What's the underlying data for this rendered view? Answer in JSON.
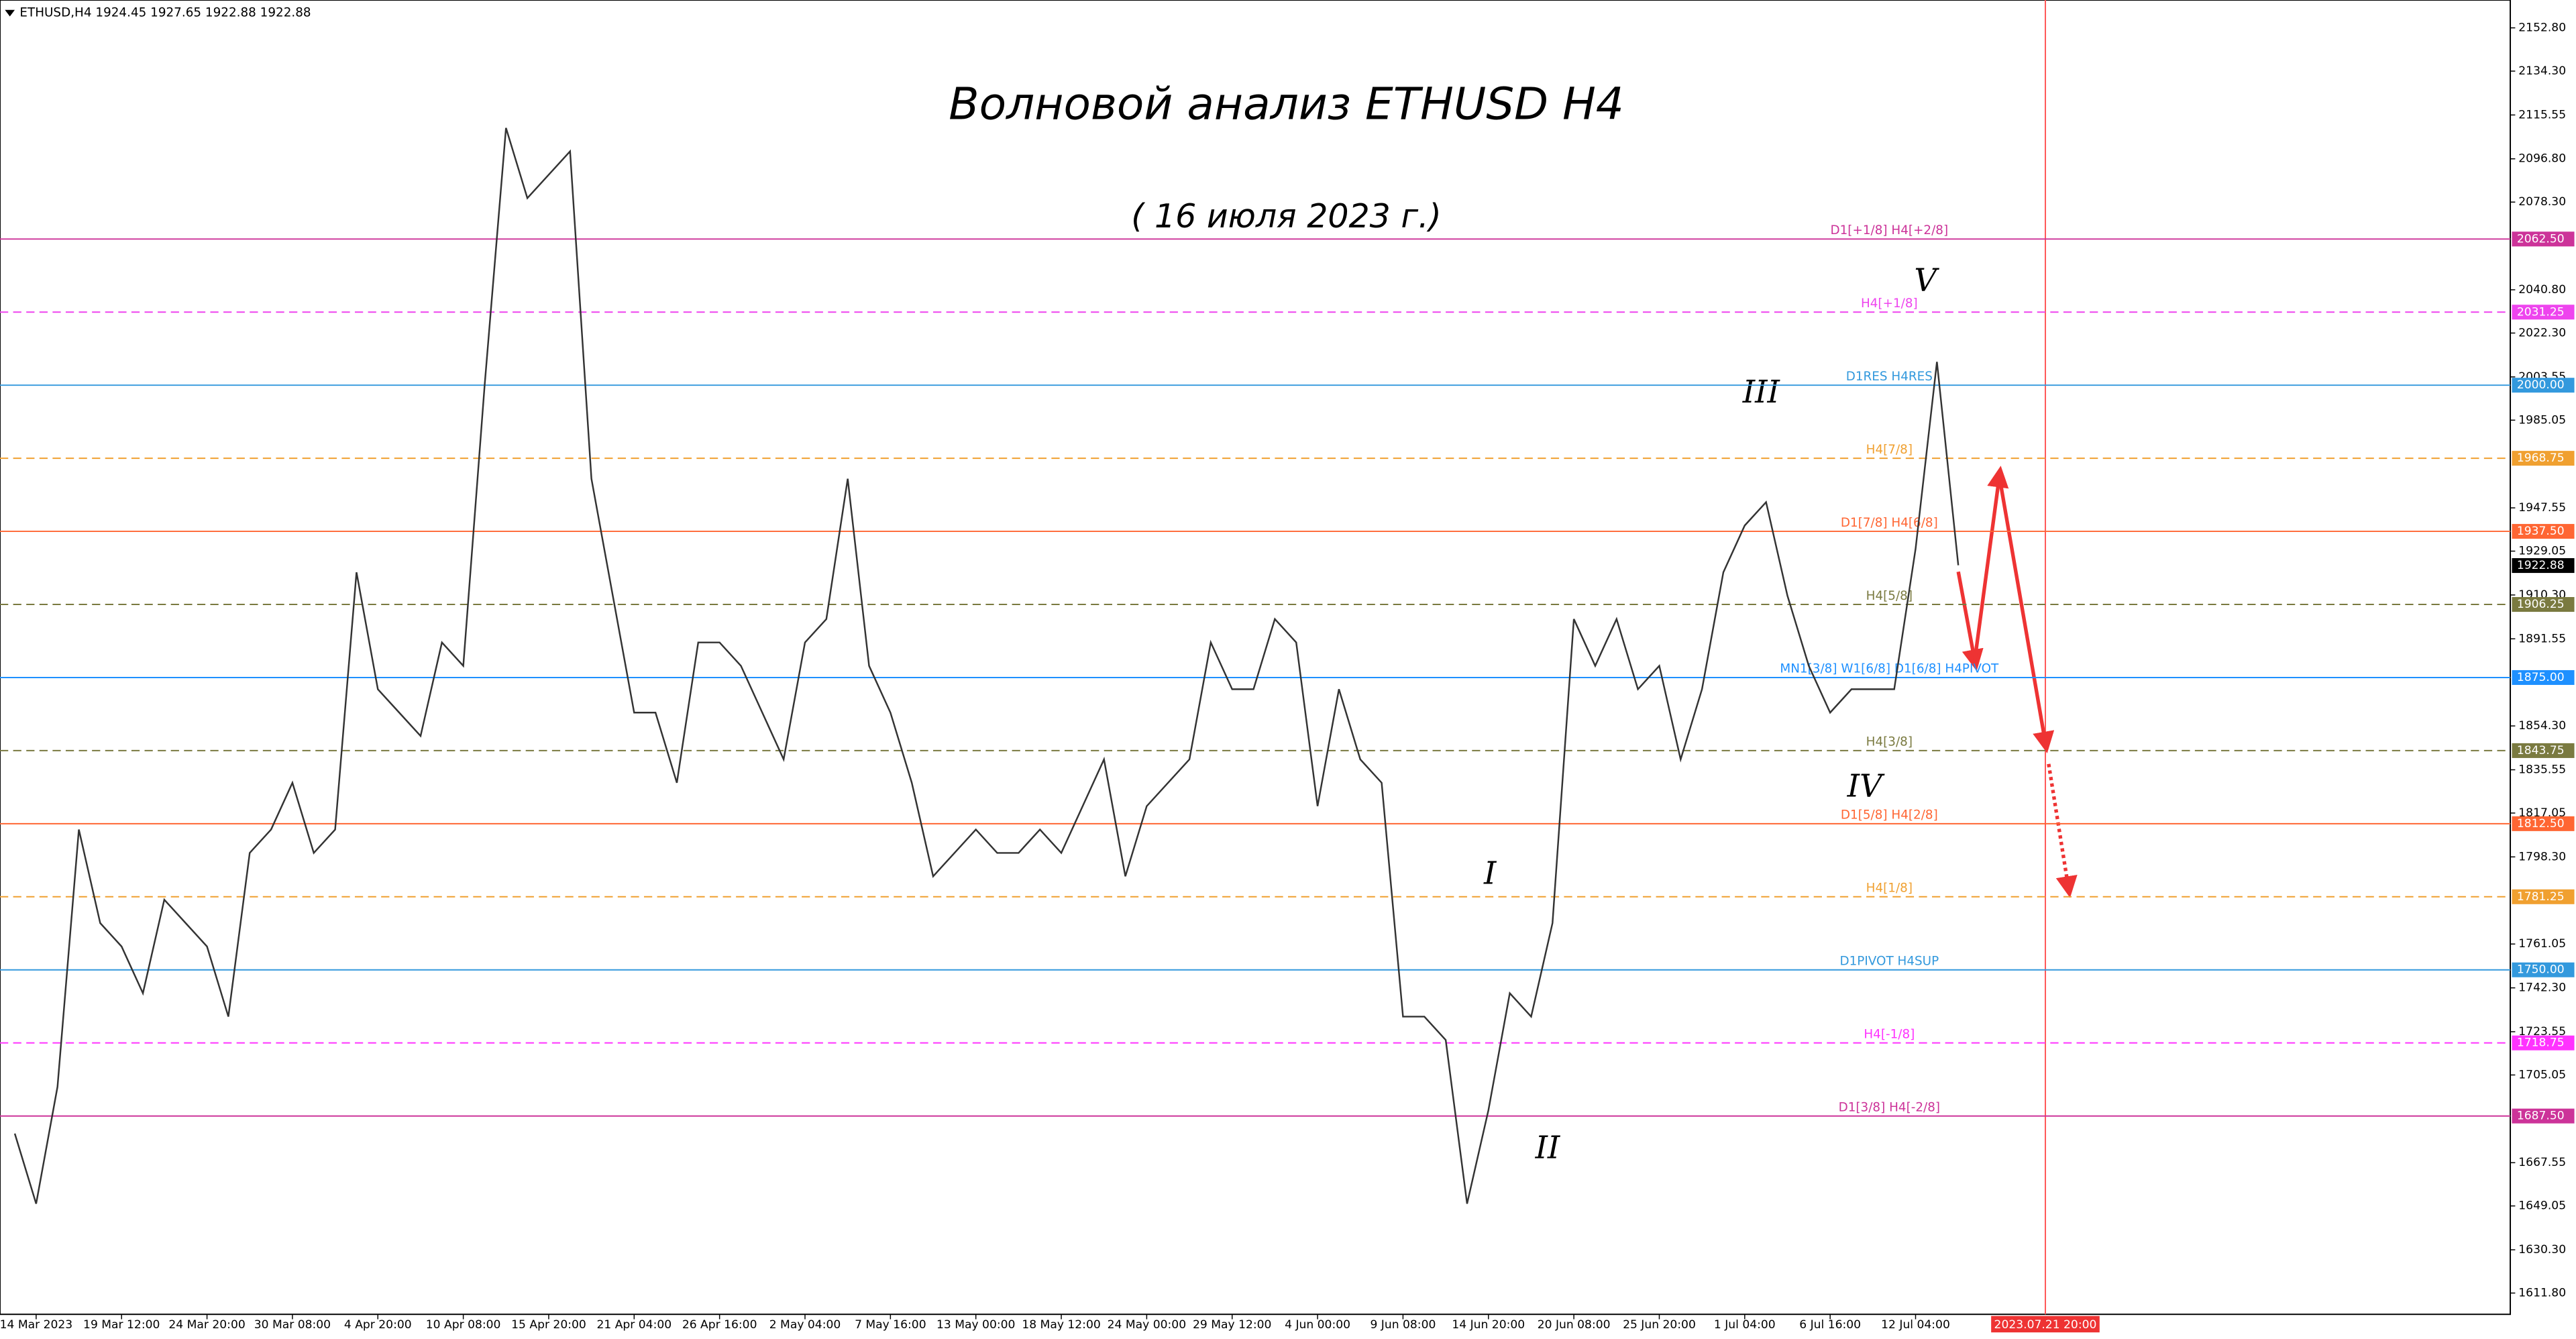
{
  "chart_data": {
    "type": "line",
    "header": "ETHUSD,H4  1924.45 1927.65 1922.88 1922.88",
    "title": "Волновой анализ ETHUSD H4",
    "subtitle": "( 16 июля 2023 г.)",
    "color": "#333333",
    "categories": [
      null,
      "14 Mar 2023",
      null,
      null,
      null,
      "19 Mar 12:00",
      null,
      null,
      null,
      "24 Mar 20:00",
      null,
      null,
      null,
      "30 Mar 08:00",
      null,
      null,
      null,
      "4 Apr 20:00",
      null,
      null,
      null,
      "10 Apr 08:00",
      null,
      null,
      null,
      "15 Apr 20:00",
      null,
      null,
      null,
      "21 Apr 04:00",
      null,
      null,
      null,
      "26 Apr 16:00",
      null,
      null,
      null,
      "2 May 04:00",
      null,
      null,
      null,
      "7 May 16:00",
      null,
      null,
      null,
      "13 May 00:00",
      null,
      null,
      null,
      "18 May 12:00",
      null,
      null,
      null,
      "24 May 00:00",
      null,
      null,
      null,
      "29 May 12:00",
      null,
      null,
      null,
      "4 Jun 00:00",
      null,
      null,
      null,
      "9 Jun 08:00",
      null,
      null,
      null,
      "14 Jun 20:00",
      null,
      null,
      null,
      "20 Jun 08:00",
      null,
      null,
      null,
      "25 Jun 20:00",
      null,
      null,
      null,
      "1 Jul 04:00",
      null,
      null,
      null,
      "6 Jul 16:00",
      null,
      null,
      null,
      "12 Jul 04:00",
      null,
      null
    ],
    "values": [
      1680,
      1650,
      1700,
      1810,
      1770,
      1760,
      1740,
      1780,
      1770,
      1760,
      1730,
      1800,
      1810,
      1830,
      1800,
      1810,
      1920,
      1870,
      1860,
      1850,
      1890,
      1880,
      2000,
      2110,
      2080,
      2090,
      2100,
      1960,
      1910,
      1860,
      1860,
      1830,
      1890,
      1890,
      1880,
      1860,
      1840,
      1890,
      1900,
      1960,
      1880,
      1860,
      1830,
      1790,
      1800,
      1810,
      1800,
      1800,
      1810,
      1800,
      1820,
      1840,
      1790,
      1820,
      1830,
      1840,
      1890,
      1870,
      1870,
      1900,
      1890,
      1820,
      1870,
      1840,
      1830,
      1730,
      1730,
      1720,
      1650,
      1690,
      1740,
      1730,
      1770,
      1900,
      1880,
      1900,
      1870,
      1880,
      1840,
      1870,
      1920,
      1940,
      1950,
      1910,
      1880,
      1860,
      1870,
      1870,
      1870,
      1930,
      2010,
      1923
    ],
    "ylim": [
      1602.7,
      2164.7
    ],
    "yticks": [
      {
        "value": 2152.8,
        "label": "2152.80"
      },
      {
        "value": 2134.3,
        "label": "2134.30"
      },
      {
        "value": 2115.55,
        "label": "2115.55"
      },
      {
        "value": 2096.8,
        "label": "2096.80"
      },
      {
        "value": 2078.3,
        "label": "2078.30"
      },
      {
        "value": 2040.8,
        "label": "2040.80"
      },
      {
        "value": 2022.3,
        "label": "2022.30"
      },
      {
        "value": 2003.55,
        "label": "2003.55"
      },
      {
        "value": 1985.05,
        "label": "1985.05"
      },
      {
        "value": 1947.55,
        "label": "1947.55"
      },
      {
        "value": 1929.05,
        "label": "1929.05"
      },
      {
        "value": 1910.3,
        "label": "1910.30"
      },
      {
        "value": 1891.55,
        "label": "1891.55"
      },
      {
        "value": 1854.3,
        "label": "1854.30"
      },
      {
        "value": 1835.55,
        "label": "1835.55"
      },
      {
        "value": 1817.05,
        "label": "1817.05"
      },
      {
        "value": 1798.3,
        "label": "1798.30"
      },
      {
        "value": 1761.05,
        "label": "1761.05"
      },
      {
        "value": 1742.3,
        "label": "1742.30"
      },
      {
        "value": 1723.55,
        "label": "1723.55"
      },
      {
        "value": 1705.05,
        "label": "1705.05"
      },
      {
        "value": 1667.55,
        "label": "1667.55"
      },
      {
        "value": 1649.05,
        "label": "1649.05"
      },
      {
        "value": 1630.3,
        "label": "1630.30"
      },
      {
        "value": 1611.8,
        "label": "1611.80"
      }
    ],
    "levels": [
      {
        "value": 2062.5,
        "label": "2062.50",
        "name": "D1[+1/8] H4[+2/8]",
        "color": "#cc3399",
        "dashed": false
      },
      {
        "value": 2031.25,
        "label": "2031.25",
        "name": "H4[+1/8]",
        "color": "#ee44ee",
        "dashed": true
      },
      {
        "value": 2000,
        "label": "2000.00",
        "name": "D1RES H4RES",
        "color": "#3399dd",
        "dashed": false
      },
      {
        "value": 1968.75,
        "label": "1968.75",
        "name": "H4[7/8]",
        "color": "#f0a030",
        "dashed": true
      },
      {
        "value": 1937.5,
        "label": "1937.50",
        "name": "D1[7/8] H4[6/8]",
        "color": "#ff6633",
        "dashed": false
      },
      {
        "value": 1906.25,
        "label": "1906.25",
        "name": "H4[5/8]",
        "color": "#7a7a40",
        "dashed": true
      },
      {
        "value": 1875,
        "label": "1875.00",
        "name": "MN1[3/8] W1[6/8] D1[6/8] H4PIVOT",
        "color": "#1e90ff",
        "dashed": false
      },
      {
        "value": 1843.75,
        "label": "1843.75",
        "name": "H4[3/8]",
        "color": "#7a7a40",
        "dashed": true
      },
      {
        "value": 1812.5,
        "label": "1812.50",
        "name": "D1[5/8] H4[2/8]",
        "color": "#ff6633",
        "dashed": false
      },
      {
        "value": 1781.25,
        "label": "1781.25",
        "name": "H4[1/8]",
        "color": "#f0a030",
        "dashed": true
      },
      {
        "value": 1750,
        "label": "1750.00",
        "name": "D1PIVOT H4SUP",
        "color": "#3399dd",
        "dashed": false
      },
      {
        "value": 1718.75,
        "label": "1718.75",
        "name": "H4[-1/8]",
        "color": "#ff33ff",
        "dashed": true
      },
      {
        "value": 1687.5,
        "label": "1687.50",
        "name": "D1[3/8] H4[-2/8]",
        "color": "#cc3399",
        "dashed": false
      }
    ],
    "last_price": {
      "value": 1922.88,
      "label": "1922.88"
    },
    "forecast_time": "2023.07.21 20:00",
    "waves": [
      "I",
      "II",
      "III",
      "IV",
      "V"
    ]
  }
}
